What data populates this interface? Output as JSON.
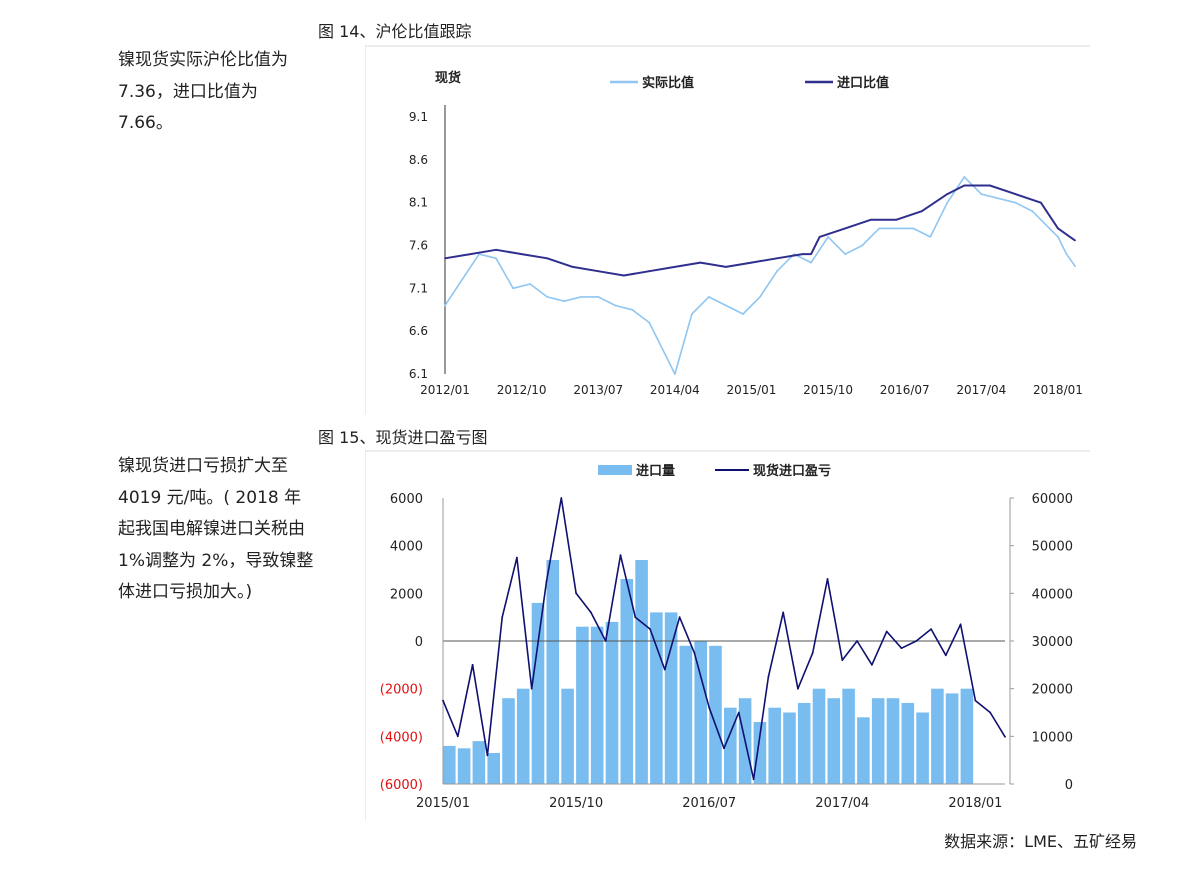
{
  "figure1": {
    "title": "图 14、沪伦比值跟踪",
    "note": "镍现货实际沪伦比值为 7.36，进口比值为 7.66。"
  },
  "figure2": {
    "title": "图 15、现货进口盈亏图",
    "note": "镍现货进口亏损扩大至 4019 元/吨。( 2018 年起我国电解镍进口关税由 1%调整为 2%，导致镍整体进口亏损加大。)"
  },
  "source": "数据来源：LME、五矿经易",
  "colors": {
    "light_blue": "#8fc6f2",
    "dark_blue": "#2f2f8f",
    "bar_blue": "#79bdf0",
    "navy": "#101070",
    "negative_red": "#e01010"
  },
  "chart_data": [
    {
      "type": "line",
      "unit_label": "现货",
      "legend_position": "top",
      "grid": false,
      "x_ticks": [
        "2012/01",
        "2012/10",
        "2013/07",
        "2014/04",
        "2015/01",
        "2015/10",
        "2016/07",
        "2017/04",
        "2018/01"
      ],
      "y_ticks": [
        "9.1",
        "8.6",
        "8.1",
        "7.6",
        "7.1",
        "6.6",
        "6.1"
      ],
      "ylim": [
        6.1,
        9.1
      ],
      "x_range": [
        "2012/01",
        "2018/03"
      ],
      "series": [
        {
          "name": "实际比值",
          "color": "#8fc6f2",
          "points": [
            [
              "2012/01",
              6.9
            ],
            [
              "2012/03",
              7.2
            ],
            [
              "2012/05",
              7.5
            ],
            [
              "2012/07",
              7.45
            ],
            [
              "2012/09",
              7.1
            ],
            [
              "2012/11",
              7.15
            ],
            [
              "2013/01",
              7.0
            ],
            [
              "2013/03",
              6.95
            ],
            [
              "2013/05",
              7.0
            ],
            [
              "2013/07",
              7.0
            ],
            [
              "2013/09",
              6.9
            ],
            [
              "2013/11",
              6.85
            ],
            [
              "2014/01",
              6.7
            ],
            [
              "2014/03",
              6.3
            ],
            [
              "2014/04",
              6.1
            ],
            [
              "2014/06",
              6.8
            ],
            [
              "2014/08",
              7.0
            ],
            [
              "2014/10",
              6.9
            ],
            [
              "2014/12",
              6.8
            ],
            [
              "2015/02",
              7.0
            ],
            [
              "2015/04",
              7.3
            ],
            [
              "2015/06",
              7.5
            ],
            [
              "2015/08",
              7.4
            ],
            [
              "2015/10",
              7.7
            ],
            [
              "2015/12",
              7.5
            ],
            [
              "2016/02",
              7.6
            ],
            [
              "2016/04",
              7.8
            ],
            [
              "2016/06",
              7.8
            ],
            [
              "2016/08",
              7.8
            ],
            [
              "2016/10",
              7.7
            ],
            [
              "2016/12",
              8.1
            ],
            [
              "2017/02",
              8.4
            ],
            [
              "2017/04",
              8.2
            ],
            [
              "2017/06",
              8.15
            ],
            [
              "2017/08",
              8.1
            ],
            [
              "2017/10",
              8.0
            ],
            [
              "2017/12",
              7.8
            ],
            [
              "2018/01",
              7.7
            ],
            [
              "2018/02",
              7.5
            ],
            [
              "2018/03",
              7.36
            ]
          ]
        },
        {
          "name": "进口比值",
          "color": "#2f2f8f",
          "points": [
            [
              "2012/01",
              7.45
            ],
            [
              "2012/04",
              7.5
            ],
            [
              "2012/07",
              7.55
            ],
            [
              "2012/10",
              7.5
            ],
            [
              "2013/01",
              7.45
            ],
            [
              "2013/04",
              7.35
            ],
            [
              "2013/07",
              7.3
            ],
            [
              "2013/10",
              7.25
            ],
            [
              "2014/01",
              7.3
            ],
            [
              "2014/04",
              7.35
            ],
            [
              "2014/07",
              7.4
            ],
            [
              "2014/10",
              7.35
            ],
            [
              "2015/01",
              7.4
            ],
            [
              "2015/04",
              7.45
            ],
            [
              "2015/07",
              7.5
            ],
            [
              "2015/08",
              7.5
            ],
            [
              "2015/09",
              7.7
            ],
            [
              "2015/12",
              7.8
            ],
            [
              "2016/03",
              7.9
            ],
            [
              "2016/06",
              7.9
            ],
            [
              "2016/09",
              8.0
            ],
            [
              "2016/12",
              8.2
            ],
            [
              "2017/02",
              8.3
            ],
            [
              "2017/05",
              8.3
            ],
            [
              "2017/08",
              8.2
            ],
            [
              "2017/11",
              8.1
            ],
            [
              "2018/01",
              7.8
            ],
            [
              "2018/03",
              7.66
            ]
          ]
        }
      ]
    },
    {
      "type": "bar",
      "legend_position": "top",
      "grid": false,
      "x_ticks": [
        "2015/01",
        "2015/10",
        "2016/07",
        "2017/04",
        "2018/01"
      ],
      "x_range": [
        "2015/01",
        "2018/03"
      ],
      "left_y_ticks": [
        "6000",
        "4000",
        "2000",
        "0",
        "(2000)",
        "(4000)",
        "(6000)"
      ],
      "left_ylim": [
        -6000,
        6000
      ],
      "right_y_ticks": [
        "60000",
        "50000",
        "40000",
        "30000",
        "20000",
        "10000",
        "0"
      ],
      "right_ylim": [
        0,
        60000
      ],
      "series": [
        {
          "name": "进口量",
          "axis": "right",
          "kind": "bar",
          "color": "#79bdf0",
          "points": [
            [
              "2015/01",
              8000
            ],
            [
              "2015/02",
              7500
            ],
            [
              "2015/03",
              9000
            ],
            [
              "2015/04",
              6500
            ],
            [
              "2015/05",
              18000
            ],
            [
              "2015/06",
              20000
            ],
            [
              "2015/07",
              38000
            ],
            [
              "2015/08",
              47000
            ],
            [
              "2015/09",
              20000
            ],
            [
              "2015/10",
              33000
            ],
            [
              "2015/11",
              33000
            ],
            [
              "2015/12",
              34000
            ],
            [
              "2016/01",
              43000
            ],
            [
              "2016/02",
              47000
            ],
            [
              "2016/03",
              36000
            ],
            [
              "2016/04",
              36000
            ],
            [
              "2016/05",
              29000
            ],
            [
              "2016/06",
              30000
            ],
            [
              "2016/07",
              29000
            ],
            [
              "2016/08",
              16000
            ],
            [
              "2016/09",
              18000
            ],
            [
              "2016/10",
              13000
            ],
            [
              "2016/11",
              16000
            ],
            [
              "2016/12",
              15000
            ],
            [
              "2017/01",
              17000
            ],
            [
              "2017/02",
              20000
            ],
            [
              "2017/03",
              18000
            ],
            [
              "2017/04",
              20000
            ],
            [
              "2017/05",
              14000
            ],
            [
              "2017/06",
              18000
            ],
            [
              "2017/07",
              18000
            ],
            [
              "2017/08",
              17000
            ],
            [
              "2017/09",
              15000
            ],
            [
              "2017/10",
              20000
            ],
            [
              "2017/11",
              19000
            ],
            [
              "2017/12",
              20000
            ]
          ]
        },
        {
          "name": "现货进口盈亏",
          "axis": "left",
          "kind": "line",
          "color": "#101070",
          "points": [
            [
              "2015/01",
              -2500
            ],
            [
              "2015/02",
              -4000
            ],
            [
              "2015/03",
              -1000
            ],
            [
              "2015/04",
              -4800
            ],
            [
              "2015/05",
              1000
            ],
            [
              "2015/06",
              3500
            ],
            [
              "2015/07",
              -2000
            ],
            [
              "2015/08",
              2500
            ],
            [
              "2015/09",
              6000
            ],
            [
              "2015/10",
              2000
            ],
            [
              "2015/11",
              1200
            ],
            [
              "2015/12",
              0
            ],
            [
              "2016/01",
              3600
            ],
            [
              "2016/02",
              1000
            ],
            [
              "2016/03",
              500
            ],
            [
              "2016/04",
              -1200
            ],
            [
              "2016/05",
              1000
            ],
            [
              "2016/06",
              -500
            ],
            [
              "2016/07",
              -2800
            ],
            [
              "2016/08",
              -4500
            ],
            [
              "2016/09",
              -3000
            ],
            [
              "2016/10",
              -5800
            ],
            [
              "2016/11",
              -1500
            ],
            [
              "2016/12",
              1200
            ],
            [
              "2017/01",
              -2000
            ],
            [
              "2017/02",
              -500
            ],
            [
              "2017/03",
              2600
            ],
            [
              "2017/04",
              -800
            ],
            [
              "2017/05",
              0
            ],
            [
              "2017/06",
              -1000
            ],
            [
              "2017/07",
              400
            ],
            [
              "2017/08",
              -300
            ],
            [
              "2017/09",
              0
            ],
            [
              "2017/10",
              500
            ],
            [
              "2017/11",
              -600
            ],
            [
              "2017/12",
              700
            ],
            [
              "2018/01",
              -2500
            ],
            [
              "2018/02",
              -3000
            ],
            [
              "2018/03",
              -4019
            ]
          ]
        }
      ]
    }
  ]
}
